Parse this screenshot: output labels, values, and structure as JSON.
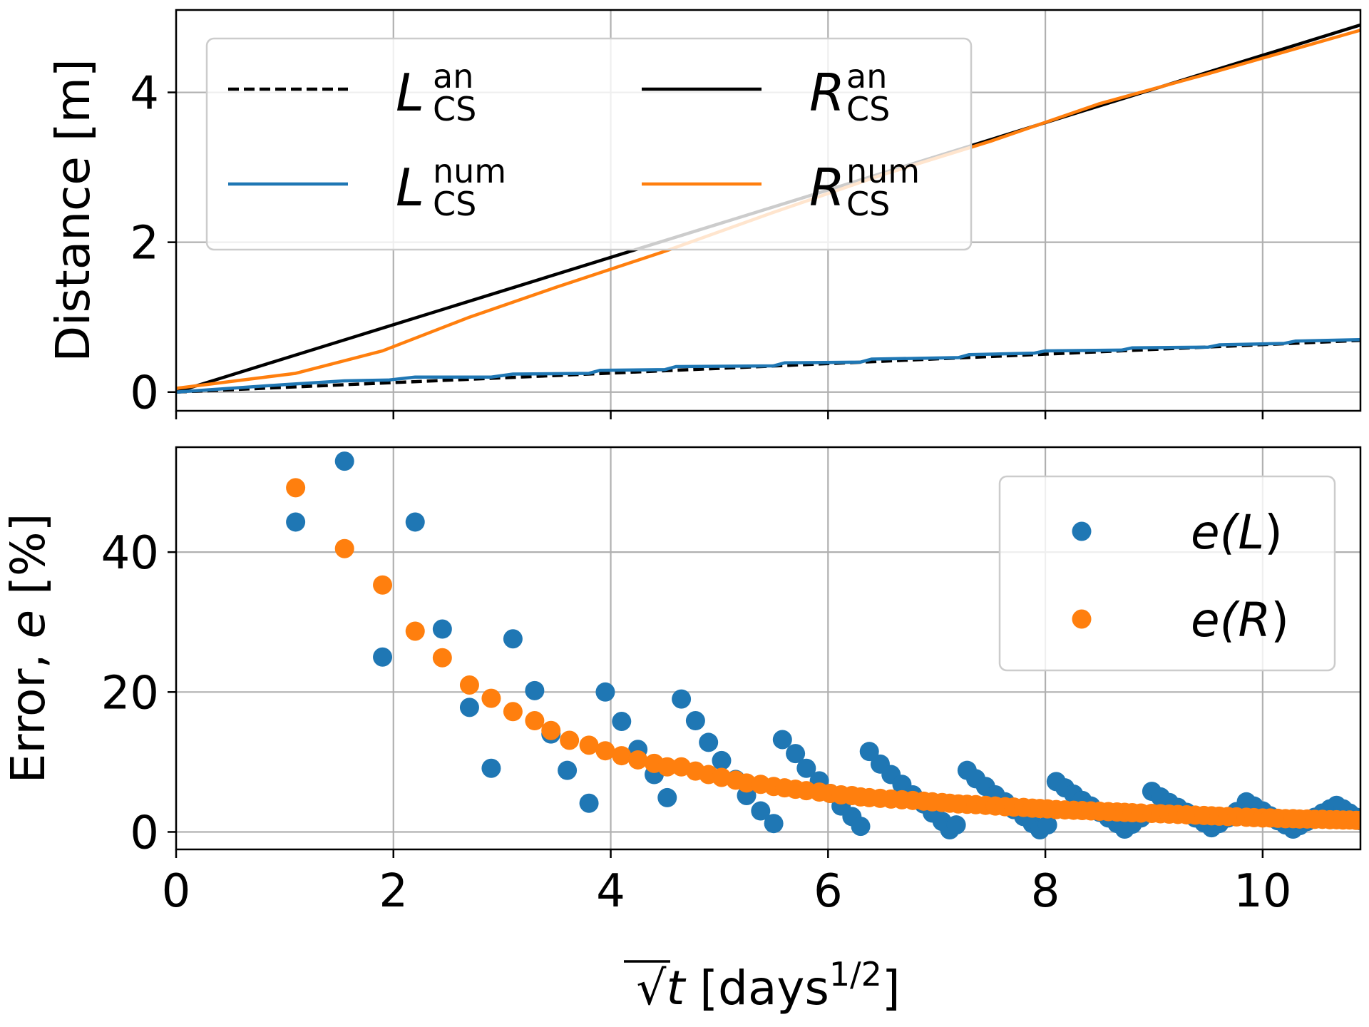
{
  "chart_data": [
    {
      "type": "line",
      "ylabel": "Distance [m]",
      "xlim": [
        0,
        10.9
      ],
      "ylim": [
        -0.25,
        5.1
      ],
      "xticks": [
        "0",
        "2",
        "4",
        "6",
        "8",
        "10"
      ],
      "yticks": [
        "0",
        "2",
        "4"
      ],
      "grid": true,
      "legend": {
        "placement": "top-left",
        "entries": [
          {
            "symbol": "L",
            "sup": "an",
            "sub": "CS"
          },
          {
            "symbol": "R",
            "sup": "an",
            "sub": "CS"
          },
          {
            "symbol": "L",
            "sup": "num",
            "sub": "CS"
          },
          {
            "symbol": "R",
            "sup": "num",
            "sub": "CS"
          }
        ]
      },
      "series": [
        {
          "name": "L_CS^an",
          "color": "#000000",
          "dash": true,
          "x": [
            0,
            10.9
          ],
          "y": [
            0,
            0.69
          ]
        },
        {
          "name": "R_CS^an",
          "color": "#000000",
          "dash": false,
          "x": [
            0,
            10.9
          ],
          "y": [
            0,
            4.9
          ]
        },
        {
          "name": "L_CS^num",
          "color": "#1f77b4",
          "dash": false,
          "x": [
            0,
            1.0,
            1.55,
            1.95,
            2.2,
            2.9,
            3.1,
            3.8,
            3.9,
            4.5,
            4.6,
            5.5,
            5.6,
            6.3,
            6.4,
            7.2,
            7.3,
            7.9,
            8.0,
            8.7,
            8.8,
            9.5,
            9.6,
            10.2,
            10.3,
            10.9
          ],
          "y": [
            0,
            0.1,
            0.15,
            0.16,
            0.2,
            0.2,
            0.24,
            0.25,
            0.29,
            0.3,
            0.34,
            0.35,
            0.39,
            0.4,
            0.44,
            0.46,
            0.5,
            0.52,
            0.55,
            0.56,
            0.59,
            0.6,
            0.63,
            0.65,
            0.68,
            0.7
          ]
        },
        {
          "name": "R_CS^num",
          "color": "#ff7f0e",
          "dash": false,
          "x": [
            0,
            1.1,
            1.9,
            2.7,
            3.5,
            4.5,
            5.5,
            6.5,
            7.5,
            8.5,
            9.5,
            10.9
          ],
          "y": [
            0.05,
            0.25,
            0.55,
            1.0,
            1.4,
            1.88,
            2.4,
            2.9,
            3.35,
            3.85,
            4.25,
            4.83
          ]
        }
      ]
    },
    {
      "type": "scatter",
      "xlabel": "√t [days^1/2]",
      "xlabel_parts": {
        "sqrt": "√",
        "var": "t",
        "text": " [days",
        "sup": "1/2",
        "close": "]"
      },
      "ylabel": "Error, e [%]",
      "ylabel_parts": {
        "pre": "Error, ",
        "var": "e",
        "post": " [%]"
      },
      "xlim": [
        0,
        10.9
      ],
      "ylim": [
        -2.5,
        55
      ],
      "xticks": [
        "0",
        "2",
        "4",
        "6",
        "8",
        "10"
      ],
      "yticks": [
        "0",
        "20",
        "40"
      ],
      "grid": true,
      "legend": {
        "placement": "top-right",
        "entries": [
          {
            "label": "e(L)",
            "pre": "e(",
            "var": "L",
            "post": ")",
            "color": "#1f77b4"
          },
          {
            "label": "e(R)",
            "pre": "e(",
            "var": "R",
            "post": ")",
            "color": "#ff7f0e"
          }
        ]
      },
      "series": [
        {
          "name": "e(L)",
          "color": "#1f77b4",
          "points": [
            [
              1.1,
              44.3
            ],
            [
              1.55,
              53
            ],
            [
              1.9,
              25
            ],
            [
              2.2,
              44.3
            ],
            [
              2.45,
              29
            ],
            [
              2.7,
              17.8
            ],
            [
              2.9,
              9.1
            ],
            [
              3.1,
              27.6
            ],
            [
              3.3,
              20.2
            ],
            [
              3.45,
              14
            ],
            [
              3.6,
              8.8
            ],
            [
              3.8,
              4.1
            ],
            [
              3.95,
              20
            ],
            [
              4.1,
              15.8
            ],
            [
              4.25,
              11.8
            ],
            [
              4.4,
              8.2
            ],
            [
              4.52,
              4.9
            ],
            [
              4.65,
              19
            ],
            [
              4.78,
              15.9
            ],
            [
              4.9,
              12.8
            ],
            [
              5.02,
              10.2
            ],
            [
              5.15,
              7.5
            ],
            [
              5.25,
              5.2
            ],
            [
              5.38,
              3
            ],
            [
              5.5,
              1.2
            ],
            [
              5.58,
              13.2
            ],
            [
              5.7,
              11.2
            ],
            [
              5.8,
              9.1
            ],
            [
              5.92,
              7.3
            ],
            [
              6.02,
              5.5
            ],
            [
              6.12,
              3.7
            ],
            [
              6.22,
              2.2
            ],
            [
              6.3,
              0.8
            ],
            [
              6.38,
              11.5
            ],
            [
              6.48,
              9.7
            ],
            [
              6.58,
              8.2
            ],
            [
              6.68,
              6.8
            ],
            [
              6.78,
              5.3
            ],
            [
              6.88,
              4.0
            ],
            [
              6.96,
              2.7
            ],
            [
              7.05,
              1.5
            ],
            [
              7.12,
              0.3
            ],
            [
              7.18,
              1.0
            ],
            [
              7.28,
              8.8
            ],
            [
              7.36,
              7.6
            ],
            [
              7.45,
              6.5
            ],
            [
              7.54,
              5.3
            ],
            [
              7.63,
              4.3
            ],
            [
              7.71,
              3.2
            ],
            [
              7.8,
              2.2
            ],
            [
              7.88,
              1.2
            ],
            [
              7.95,
              0.3
            ],
            [
              8.02,
              1.0
            ],
            [
              8.1,
              7.2
            ],
            [
              8.18,
              6.3
            ],
            [
              8.26,
              5.4
            ],
            [
              8.34,
              4.5
            ],
            [
              8.42,
              3.7
            ],
            [
              8.5,
              2.8
            ],
            [
              8.58,
              2.0
            ],
            [
              8.66,
              1.2
            ],
            [
              8.73,
              0.4
            ],
            [
              8.8,
              1.1
            ],
            [
              8.88,
              2.0
            ],
            [
              8.98,
              5.8
            ],
            [
              9.06,
              5.0
            ],
            [
              9.14,
              4.2
            ],
            [
              9.22,
              3.5
            ],
            [
              9.3,
              2.8
            ],
            [
              9.38,
              2.0
            ],
            [
              9.46,
              1.3
            ],
            [
              9.53,
              0.6
            ],
            [
              9.6,
              1.2
            ],
            [
              9.68,
              2.0
            ],
            [
              9.76,
              2.9
            ],
            [
              9.85,
              4.3
            ],
            [
              9.92,
              3.7
            ],
            [
              10.0,
              3.0
            ],
            [
              10.07,
              2.3
            ],
            [
              10.14,
              1.6
            ],
            [
              10.21,
              1.0
            ],
            [
              10.28,
              0.4
            ],
            [
              10.34,
              0.9
            ],
            [
              10.41,
              1.5
            ],
            [
              10.48,
              2.1
            ],
            [
              10.55,
              2.7
            ],
            [
              10.62,
              3.3
            ],
            [
              10.68,
              3.8
            ],
            [
              10.74,
              3.3
            ],
            [
              10.8,
              2.7
            ],
            [
              10.86,
              2.1
            ],
            [
              10.9,
              1.6
            ]
          ]
        },
        {
          "name": "e(R)",
          "color": "#ff7f0e",
          "points": [
            [
              1.1,
              49.2
            ],
            [
              1.55,
              40.5
            ],
            [
              1.9,
              35.3
            ],
            [
              2.2,
              28.7
            ],
            [
              2.45,
              24.9
            ],
            [
              2.7,
              21
            ],
            [
              2.9,
              19.1
            ],
            [
              3.1,
              17.2
            ],
            [
              3.3,
              15.9
            ],
            [
              3.45,
              14.5
            ],
            [
              3.62,
              13.1
            ],
            [
              3.8,
              12.4
            ],
            [
              3.95,
              11.6
            ],
            [
              4.1,
              10.9
            ],
            [
              4.25,
              10.3
            ],
            [
              4.4,
              9.8
            ],
            [
              4.52,
              9.3
            ],
            [
              4.65,
              9.3
            ],
            [
              4.78,
              8.7
            ],
            [
              4.9,
              8.2
            ],
            [
              5.02,
              7.8
            ],
            [
              5.15,
              7.4
            ],
            [
              5.25,
              7.0
            ],
            [
              5.38,
              6.8
            ],
            [
              5.5,
              6.5
            ],
            [
              5.6,
              6.3
            ],
            [
              5.7,
              6.1
            ],
            [
              5.8,
              5.9
            ],
            [
              5.92,
              5.7
            ],
            [
              6.02,
              5.5
            ],
            [
              6.12,
              5.3
            ],
            [
              6.22,
              5.2
            ],
            [
              6.3,
              5.0
            ],
            [
              6.38,
              4.9
            ],
            [
              6.48,
              4.8
            ],
            [
              6.58,
              4.7
            ],
            [
              6.68,
              4.6
            ],
            [
              6.78,
              4.5
            ],
            [
              6.88,
              4.4
            ],
            [
              6.96,
              4.3
            ],
            [
              7.05,
              4.2
            ],
            [
              7.12,
              4.1
            ],
            [
              7.2,
              4.0
            ],
            [
              7.28,
              3.95
            ],
            [
              7.36,
              3.9
            ],
            [
              7.45,
              3.8
            ],
            [
              7.54,
              3.7
            ],
            [
              7.63,
              3.6
            ],
            [
              7.71,
              3.55
            ],
            [
              7.8,
              3.5
            ],
            [
              7.88,
              3.4
            ],
            [
              7.95,
              3.35
            ],
            [
              8.02,
              3.3
            ],
            [
              8.1,
              3.2
            ],
            [
              8.18,
              3.15
            ],
            [
              8.26,
              3.1
            ],
            [
              8.34,
              3.05
            ],
            [
              8.42,
              3.0
            ],
            [
              8.5,
              2.95
            ],
            [
              8.58,
              2.9
            ],
            [
              8.66,
              2.85
            ],
            [
              8.73,
              2.8
            ],
            [
              8.8,
              2.75
            ],
            [
              8.88,
              2.7
            ],
            [
              8.98,
              2.65
            ],
            [
              9.06,
              2.6
            ],
            [
              9.14,
              2.55
            ],
            [
              9.22,
              2.5
            ],
            [
              9.3,
              2.45
            ],
            [
              9.38,
              2.4
            ],
            [
              9.46,
              2.35
            ],
            [
              9.53,
              2.3
            ],
            [
              9.6,
              2.25
            ],
            [
              9.68,
              2.2
            ],
            [
              9.76,
              2.15
            ],
            [
              9.85,
              2.1
            ],
            [
              9.92,
              2.05
            ],
            [
              10.0,
              2.0
            ],
            [
              10.07,
              2.0
            ],
            [
              10.14,
              1.95
            ],
            [
              10.21,
              1.9
            ],
            [
              10.28,
              1.9
            ],
            [
              10.34,
              1.85
            ],
            [
              10.41,
              1.85
            ],
            [
              10.48,
              1.8
            ],
            [
              10.55,
              1.8
            ],
            [
              10.62,
              1.75
            ],
            [
              10.68,
              1.75
            ],
            [
              10.74,
              1.7
            ],
            [
              10.8,
              1.7
            ],
            [
              10.86,
              1.65
            ],
            [
              10.9,
              1.65
            ]
          ]
        }
      ]
    }
  ]
}
